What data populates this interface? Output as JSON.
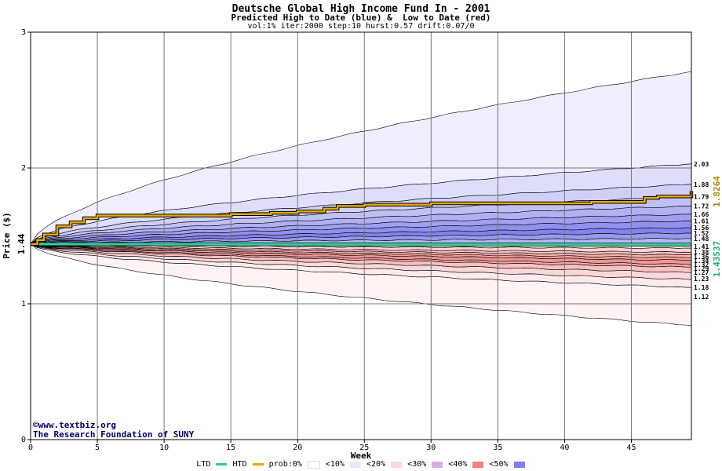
{
  "header": {
    "title": "Deutsche Global High Income Fund In - 2001",
    "subtitle": "Predicted High to Date (blue) &  Low to Date (red)",
    "params": "vol:1% iter:2000 step:10 hurst:0.57 drift:0.07/0"
  },
  "watermark": {
    "site": "www.textbiz.org",
    "org": "The Research Foundation of SUNY",
    "copyright_symbol": "©"
  },
  "legend": {
    "ltd": "LTD",
    "htd": "HTD",
    "prob_prefix": "prob:0%",
    "bands": [
      "<10%",
      "<20%",
      "<30%",
      "<40%",
      "<50%"
    ],
    "colors": {
      "ltd": "#33cc99",
      "htd": "#e8a800",
      "bands": [
        "#ffffff",
        "#e8e8ff",
        "#ffd6e0",
        "#d6b0e0",
        "#f08080",
        "#8080f0"
      ]
    }
  },
  "chart_data": {
    "type": "area",
    "xlabel": "Week",
    "ylabel": "Price ($)",
    "xlim": [
      0,
      50
    ],
    "ylim": [
      0,
      3
    ],
    "xticks": [
      0,
      5,
      10,
      15,
      20,
      25,
      30,
      35,
      40,
      45
    ],
    "yticks": [
      0,
      1,
      2,
      3
    ],
    "start_price": "1.44",
    "htd_value": "1.8264",
    "ltd_value": "1.43537",
    "upper_band_labels": [
      "2.03",
      "1.88",
      "1.79",
      "1.72",
      "1.66",
      "1.61",
      "1.56",
      "1.52",
      "1.48"
    ],
    "lower_band_labels": [
      "1.41",
      "1.38",
      "1.36",
      "1.34",
      "1.32",
      "1.29",
      "1.27",
      "1.23",
      "1.18",
      "1.12"
    ],
    "upper_band_end_values": [
      2.71,
      2.03,
      1.88,
      1.79,
      1.72,
      1.66,
      1.61,
      1.56,
      1.52,
      1.48
    ],
    "lower_band_end_values": [
      1.41,
      1.38,
      1.36,
      1.34,
      1.32,
      1.29,
      1.27,
      1.23,
      1.18,
      1.12,
      0.84
    ],
    "upper_band_colors": [
      "#eeeeff",
      "#dedefa",
      "#d0d0f7",
      "#c0c0f5",
      "#b0b0f2",
      "#a0a0f0",
      "#9090ee",
      "#8282ec",
      "#9898ee",
      "#b8b8f4"
    ],
    "lower_band_colors": [
      "#fde4e4",
      "#fbd2d2",
      "#f9c0c0",
      "#f7b0b0",
      "#f5a0a0",
      "#f39494",
      "#f5a8a8",
      "#f8c0c0",
      "#fbd8d8",
      "#fdebeb",
      "#fff2f2"
    ],
    "htd_path": [
      [
        0,
        1.44
      ],
      [
        0.5,
        1.47
      ],
      [
        1,
        1.51
      ],
      [
        2,
        1.57
      ],
      [
        3,
        1.6
      ],
      [
        4,
        1.63
      ],
      [
        5,
        1.65
      ],
      [
        10,
        1.65
      ],
      [
        15,
        1.66
      ],
      [
        18,
        1.67
      ],
      [
        20,
        1.68
      ],
      [
        22,
        1.7
      ],
      [
        23,
        1.72
      ],
      [
        25,
        1.73
      ],
      [
        30,
        1.74
      ],
      [
        35,
        1.74
      ],
      [
        42,
        1.75
      ],
      [
        46,
        1.78
      ],
      [
        47,
        1.79
      ],
      [
        49,
        1.79
      ],
      [
        49.5,
        1.83
      ]
    ],
    "ltd_path": [
      [
        0,
        1.44
      ],
      [
        49.5,
        1.43537
      ]
    ]
  }
}
